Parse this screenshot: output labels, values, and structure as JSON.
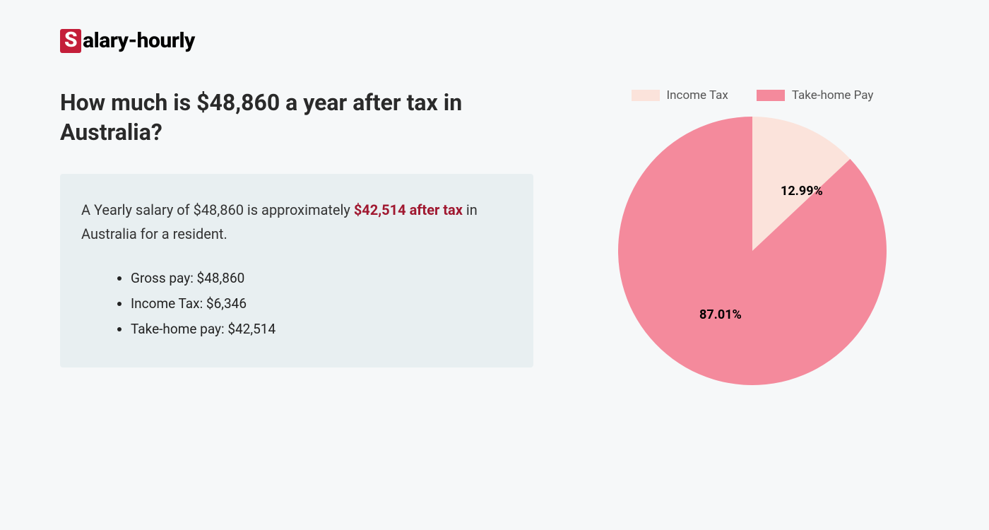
{
  "logo": {
    "badge_letter": "S",
    "text": "alary-hourly",
    "badge_bg": "#c41e3a",
    "badge_fg": "#ffffff"
  },
  "heading": "How much is $48,860 a year after tax in Australia?",
  "summary": {
    "pre_text": "A Yearly salary of $48,860 is approximately ",
    "highlight": "$42,514 after tax",
    "post_text": " in Australia for a resident.",
    "highlight_color": "#a01830",
    "box_bg": "#e8eff1",
    "items": [
      "Gross pay: $48,860",
      "Income Tax: $6,346",
      "Take-home pay: $42,514"
    ]
  },
  "chart": {
    "type": "pie",
    "radius": 190,
    "background_color": "#f6f8f9",
    "slices": [
      {
        "label": "Income Tax",
        "value": 12.99,
        "color": "#fbe3db",
        "display": "12.99%"
      },
      {
        "label": "Take-home Pay",
        "value": 87.01,
        "color": "#f48a9c",
        "display": "87.01%"
      }
    ],
    "legend_swatch_w": 40,
    "legend_swatch_h": 16,
    "label_fontsize": 18,
    "label_fontweight": 700,
    "legend_fontsize": 17,
    "legend_color": "#555555"
  }
}
